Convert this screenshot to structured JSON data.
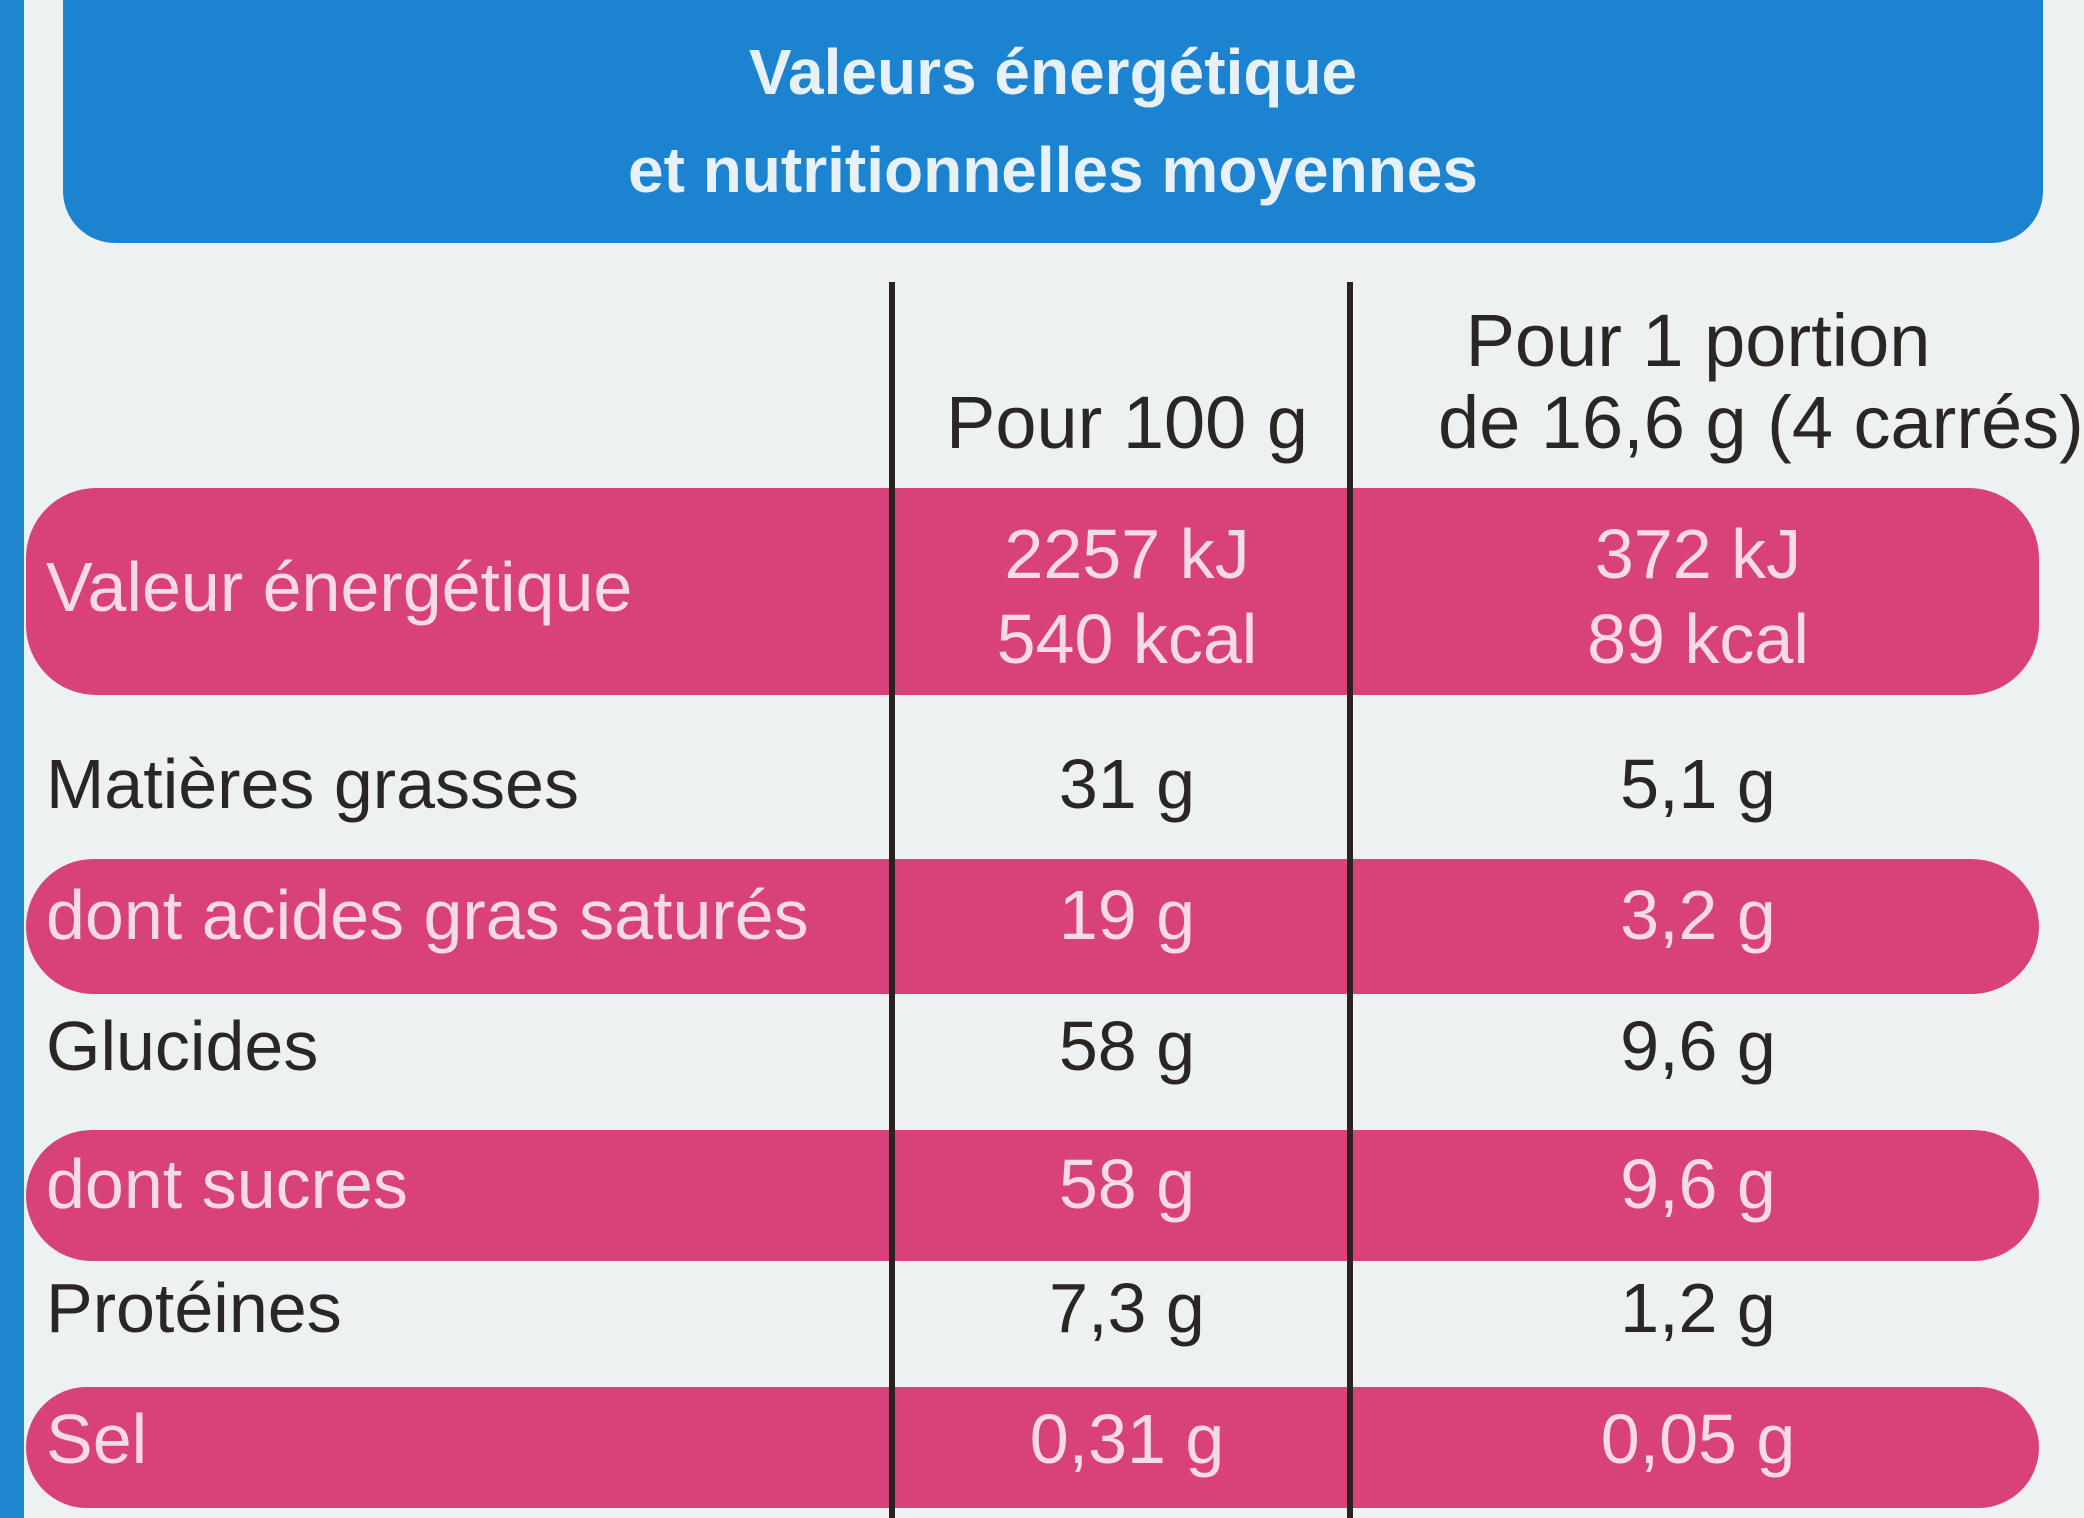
{
  "header": {
    "title_lines": [
      "Valeurs énergétique",
      "et nutritionnelles moyennes"
    ]
  },
  "table": {
    "columns": [
      {
        "lines": [
          "Pour 100 g"
        ]
      },
      {
        "lines": [
          "Pour 1 portion",
          "de 16,6 g (4 carrés)"
        ]
      }
    ],
    "rows": [
      {
        "label": "Valeur énergétique",
        "values": [
          [
            "2257 kJ",
            "540 kcal"
          ],
          [
            "372 kJ",
            "89 kcal"
          ]
        ]
      },
      {
        "label": "Matières grasses",
        "values": [
          [
            "31 g"
          ],
          [
            "5,1 g"
          ]
        ]
      },
      {
        "label": "dont acides gras saturés",
        "values": [
          [
            "19 g"
          ],
          [
            "3,2 g"
          ]
        ]
      },
      {
        "label": "Glucides",
        "values": [
          [
            "58 g"
          ],
          [
            "9,6 g"
          ]
        ]
      },
      {
        "label": "dont sucres",
        "values": [
          [
            "58 g"
          ],
          [
            "9,6 g"
          ]
        ]
      },
      {
        "label": "Protéines",
        "values": [
          [
            "7,3 g"
          ],
          [
            "1,2 g"
          ]
        ]
      },
      {
        "label": "Sel",
        "values": [
          [
            "0,31 g"
          ],
          [
            "0,05 g"
          ]
        ]
      }
    ]
  }
}
